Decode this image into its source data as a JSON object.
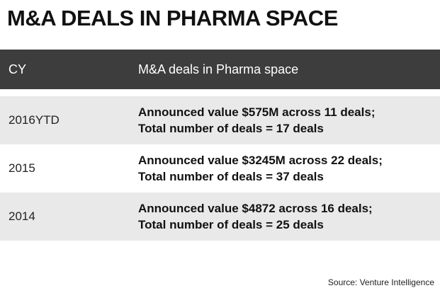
{
  "title": "M&A DEALS IN PHARMA SPACE",
  "table": {
    "headers": [
      "CY",
      "M&A deals in Pharma space"
    ],
    "rows": [
      {
        "cy": "2016YTD",
        "line1": "Announced value $575M across 11 deals;",
        "line2": "Total number of deals = 17 deals"
      },
      {
        "cy": "2015",
        "line1": "Announced value $3245M across 22 deals;",
        "line2": "Total number of deals = 37 deals"
      },
      {
        "cy": "2014",
        "line1": "Announced value $4872 across 16 deals;",
        "line2": "Total number of deals = 25 deals"
      }
    ]
  },
  "source": "Source: Venture Intelligence",
  "colors": {
    "header_bg": "#3d3d3d",
    "row_shade": "#e9e9e9"
  }
}
